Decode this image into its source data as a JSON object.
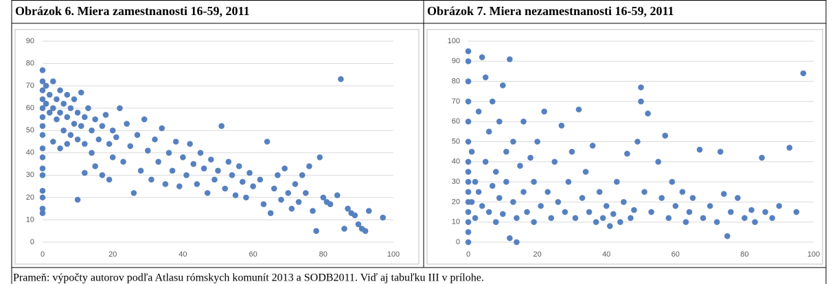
{
  "chart_data": [
    {
      "type": "scatter",
      "title": "Obrázok 6. Miera zamestnanosti 16-59, 2011",
      "color": "#5681c0",
      "grid": true,
      "xlim": [
        0,
        100
      ],
      "xticks": [
        0,
        20,
        40,
        60,
        80,
        100
      ],
      "ylim": [
        0,
        90
      ],
      "yticks": [
        0,
        10,
        20,
        30,
        40,
        50,
        60,
        70,
        80,
        90
      ],
      "x": [
        0,
        0,
        0,
        0,
        0,
        0,
        0,
        0,
        0,
        0,
        0,
        0,
        0,
        0,
        0,
        0,
        1,
        1,
        2,
        2,
        3,
        3,
        3,
        4,
        4,
        5,
        5,
        5,
        6,
        6,
        7,
        7,
        7,
        8,
        8,
        9,
        9,
        10,
        10,
        10,
        11,
        11,
        12,
        12,
        12,
        13,
        14,
        14,
        15,
        15,
        16,
        17,
        17,
        18,
        19,
        19,
        20,
        20,
        21,
        22,
        23,
        24,
        25,
        26,
        27,
        28,
        29,
        30,
        31,
        32,
        33,
        34,
        35,
        36,
        37,
        38,
        39,
        40,
        41,
        42,
        43,
        44,
        45,
        46,
        47,
        48,
        49,
        50,
        51,
        52,
        53,
        54,
        55,
        56,
        57,
        58,
        59,
        60,
        62,
        63,
        64,
        65,
        66,
        67,
        68,
        69,
        70,
        71,
        72,
        73,
        74,
        75,
        76,
        77,
        78,
        79,
        80,
        81,
        82,
        84,
        85,
        86,
        87,
        88,
        89,
        90,
        91,
        92,
        93,
        97
      ],
      "values": [
        13,
        15,
        20,
        23,
        30,
        33,
        38,
        42,
        48,
        52,
        56,
        60,
        64,
        68,
        72,
        77,
        62,
        70,
        58,
        66,
        45,
        60,
        72,
        55,
        64,
        42,
        58,
        68,
        50,
        62,
        44,
        56,
        66,
        48,
        60,
        53,
        64,
        19,
        46,
        58,
        52,
        67,
        31,
        44,
        56,
        60,
        40,
        50,
        34,
        55,
        46,
        30,
        52,
        57,
        28,
        44,
        38,
        50,
        47,
        60,
        36,
        53,
        43,
        22,
        48,
        32,
        55,
        41,
        28,
        46,
        36,
        51,
        26,
        40,
        32,
        45,
        25,
        38,
        30,
        44,
        35,
        26,
        40,
        33,
        22,
        37,
        28,
        32,
        52,
        24,
        36,
        30,
        21,
        34,
        27,
        20,
        31,
        25,
        28,
        17,
        45,
        13,
        24,
        30,
        19,
        33,
        22,
        15,
        26,
        18,
        30,
        22,
        34,
        14,
        5,
        38,
        20,
        18,
        17,
        21,
        73,
        6,
        15,
        13,
        12,
        8,
        6,
        5,
        14,
        11
      ]
    },
    {
      "type": "scatter",
      "title": "Obrázok 7. Miera nezamestnanosti 16-59, 2011",
      "color": "#5681c0",
      "grid": true,
      "xlim": [
        0,
        100
      ],
      "xticks": [
        0,
        20,
        40,
        60,
        80,
        100
      ],
      "ylim": [
        0,
        100
      ],
      "yticks": [
        0,
        10,
        20,
        30,
        40,
        50,
        60,
        70,
        80,
        90,
        100
      ],
      "x": [
        0,
        0,
        0,
        0,
        0,
        0,
        0,
        0,
        0,
        0,
        0,
        0,
        0,
        0,
        0,
        1,
        1,
        2,
        2,
        3,
        3,
        4,
        4,
        5,
        5,
        6,
        6,
        7,
        7,
        8,
        8,
        9,
        9,
        10,
        10,
        11,
        11,
        12,
        12,
        13,
        13,
        14,
        14,
        15,
        16,
        16,
        17,
        18,
        19,
        19,
        20,
        21,
        22,
        23,
        24,
        25,
        26,
        27,
        28,
        29,
        30,
        31,
        32,
        33,
        34,
        35,
        36,
        37,
        38,
        39,
        40,
        41,
        42,
        43,
        44,
        45,
        46,
        47,
        48,
        49,
        50,
        50,
        51,
        52,
        53,
        55,
        56,
        57,
        58,
        59,
        60,
        62,
        63,
        64,
        65,
        67,
        68,
        70,
        72,
        73,
        74,
        75,
        76,
        78,
        80,
        82,
        83,
        85,
        86,
        88,
        90,
        93,
        95,
        97
      ],
      "values": [
        0,
        5,
        10,
        15,
        20,
        25,
        30,
        35,
        40,
        50,
        60,
        70,
        80,
        90,
        95,
        20,
        45,
        12,
        30,
        65,
        25,
        92,
        18,
        40,
        82,
        15,
        55,
        28,
        70,
        10,
        35,
        60,
        22,
        78,
        14,
        45,
        30,
        91,
        2,
        20,
        50,
        0,
        12,
        38,
        25,
        60,
        15,
        42,
        10,
        30,
        50,
        18,
        65,
        25,
        12,
        40,
        20,
        58,
        15,
        30,
        45,
        12,
        66,
        22,
        35,
        15,
        48,
        10,
        25,
        12,
        18,
        8,
        14,
        30,
        10,
        20,
        44,
        12,
        16,
        50,
        77,
        70,
        25,
        64,
        15,
        40,
        22,
        53,
        12,
        30,
        18,
        25,
        10,
        15,
        22,
        46,
        12,
        18,
        10,
        45,
        24,
        3,
        15,
        22,
        12,
        16,
        10,
        42,
        15,
        12,
        18,
        47,
        15,
        84
      ]
    }
  ],
  "caption": "Prameň: výpočty autorov podľa Atlasu rómskych komunít 2013 a SODB2011. Viď aj tabuľku III v prílohe."
}
